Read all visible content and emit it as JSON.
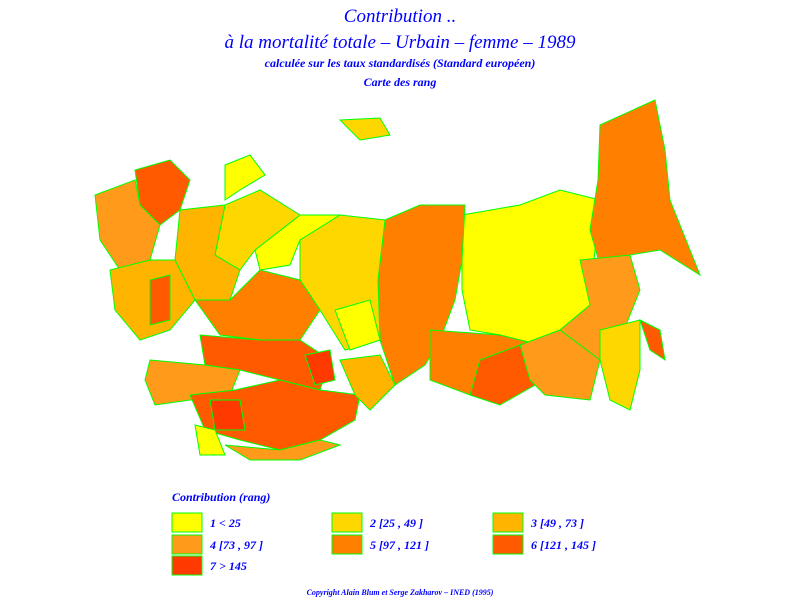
{
  "header": {
    "title": "Contribution ..",
    "subtitle": "à la mortalité totale – Urbain – femme – 1989",
    "note": "calculée sur les taux standardisés (Standard européen)",
    "map_label": "Carte des rang"
  },
  "legend": {
    "title": "Contribution (rang)",
    "items": [
      {
        "label": "1 < 25",
        "color": "#ffff00"
      },
      {
        "label": "2 [25 , 49 ]",
        "color": "#ffd700"
      },
      {
        "label": "3 [49 , 73 ]",
        "color": "#ffb400"
      },
      {
        "label": "4 [73 , 97 ]",
        "color": "#ff9a1a"
      },
      {
        "label": "5 [97 , 121 ]",
        "color": "#ff7f00"
      },
      {
        "label": "6 [121 , 145 ]",
        "color": "#ff5a00"
      },
      {
        "label": "7 > 145",
        "color": "#ff3a00"
      }
    ]
  },
  "footer": {
    "copyright": "Copyright Alain Blum et Serge Zakharov – INED (1995)"
  }
}
